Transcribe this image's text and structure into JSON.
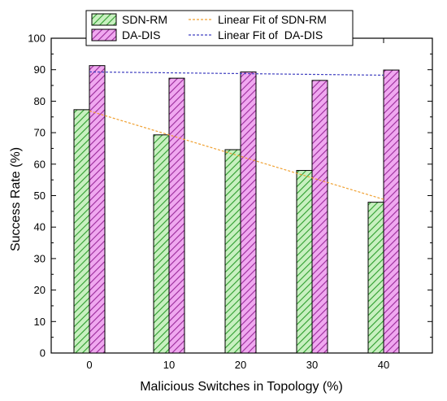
{
  "chart_data": {
    "type": "bar",
    "categories": [
      "0",
      "10",
      "20",
      "30",
      "40"
    ],
    "series": [
      {
        "name": "SDN-RM",
        "values": [
          77.3,
          69.3,
          64.6,
          58.0,
          47.9
        ],
        "color": "#2e9e2e",
        "fill": "#c8f0c0"
      },
      {
        "name": "DA-DIS",
        "values": [
          91.3,
          87.3,
          89.3,
          86.6,
          89.9
        ],
        "color": "#9a2a9a",
        "fill": "#f0a8f0"
      }
    ],
    "fits": [
      {
        "name": "Linear Fit of SDN-RM",
        "intercept": 76.9,
        "slope": -0.702,
        "color": "#f0a030"
      },
      {
        "name": "Linear Fit of  DA-DIS",
        "intercept": 89.3,
        "slope": -0.026,
        "color": "#4040c0"
      }
    ],
    "xlabel": "Malicious Switches in Topology (%)",
    "ylabel": "Success Rate (%)",
    "ylim": [
      0,
      100
    ],
    "yticks": [
      0,
      10,
      20,
      30,
      40,
      50,
      60,
      70,
      80,
      90,
      100
    ],
    "xvalues": [
      0,
      10,
      20,
      30,
      40
    ],
    "legend_position": "top"
  }
}
